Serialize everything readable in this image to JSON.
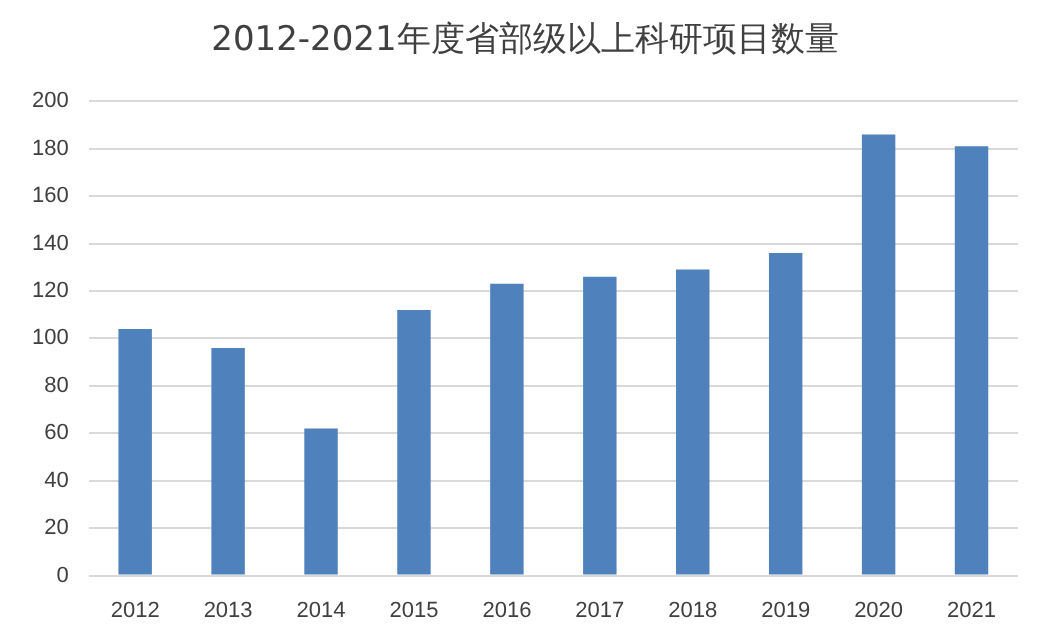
{
  "chart_data": {
    "type": "bar",
    "title": "2012-2021年度省部级以上科研项目数量",
    "categories": [
      "2012",
      "2013",
      "2014",
      "2015",
      "2016",
      "2017",
      "2018",
      "2019",
      "2020",
      "2021"
    ],
    "values": [
      104,
      96,
      62,
      112,
      123,
      126,
      129,
      136,
      186,
      181
    ],
    "color": "#4f81bd",
    "ylim": [
      0,
      200
    ],
    "yticks": [
      0,
      20,
      40,
      60,
      80,
      100,
      120,
      140,
      160,
      180,
      200
    ],
    "grid": "y"
  }
}
